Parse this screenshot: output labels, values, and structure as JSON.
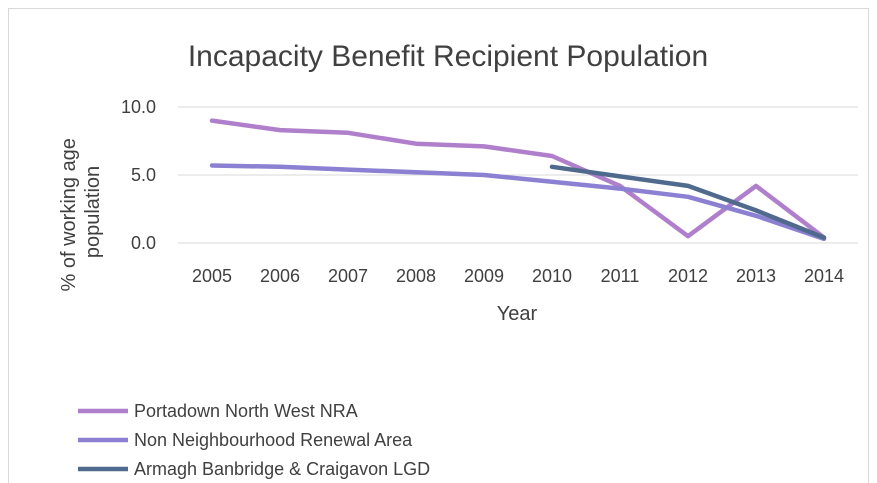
{
  "chart_data": {
    "type": "line",
    "title": "Incapacity Benefit Recipient Population",
    "xlabel": "Year",
    "ylabel_lines": [
      "% of working age",
      "population"
    ],
    "categories": [
      "2005",
      "2006",
      "2007",
      "2008",
      "2009",
      "2010",
      "2011",
      "2012",
      "2013",
      "2014"
    ],
    "yticks": [
      "0.0",
      "5.0",
      "10.0"
    ],
    "ylim": [
      0,
      10
    ],
    "grid": true,
    "legend_position": "bottom",
    "series": [
      {
        "name": "Portadown North West NRA",
        "color": "#b07fcc",
        "values": [
          9.0,
          8.3,
          8.1,
          7.3,
          7.1,
          6.4,
          4.2,
          0.5,
          4.2,
          0.4
        ]
      },
      {
        "name": "Non Neighbourhood Renewal Area",
        "color": "#8b80d2",
        "values": [
          5.7,
          5.6,
          5.4,
          5.2,
          5.0,
          4.5,
          4.0,
          3.4,
          2.0,
          0.3
        ]
      },
      {
        "name": "Armagh Banbridge & Craigavon LGD",
        "color": "#4f6a8c",
        "values": [
          null,
          null,
          null,
          null,
          null,
          5.6,
          4.9,
          4.2,
          2.4,
          0.4
        ]
      }
    ]
  }
}
